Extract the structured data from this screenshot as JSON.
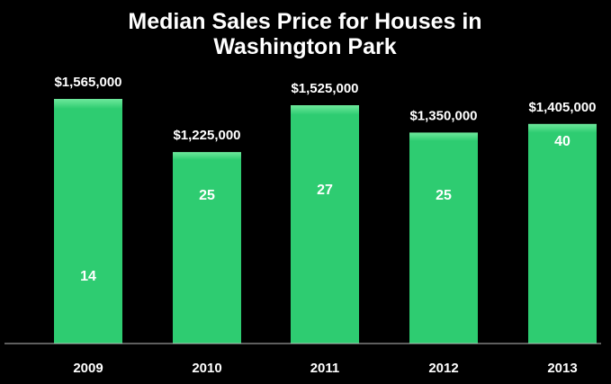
{
  "chart_data": {
    "type": "bar",
    "title_lines": [
      "Median Sales Price for Houses in",
      "Washington Park"
    ],
    "categories": [
      "2009",
      "2010",
      "2011",
      "2012",
      "2013"
    ],
    "values": [
      1565000,
      1225000,
      1525000,
      1350000,
      1405000
    ],
    "value_labels": [
      "$1,565,000",
      "$1,225,000",
      "$1,525,000",
      "$1,350,000",
      "$1,405,000"
    ],
    "bar_counts": [
      "14",
      "25",
      "27",
      "25",
      "40"
    ],
    "xlabel": "",
    "ylabel": "",
    "ylim": [
      0,
      1650000
    ],
    "grid": false,
    "legend": "none",
    "colors": {
      "bar_fill": "#2ecc71",
      "bar_top": "#6ee89c",
      "background": "#000000",
      "text": "#ffffff",
      "axis": "#bbbbbb"
    }
  }
}
